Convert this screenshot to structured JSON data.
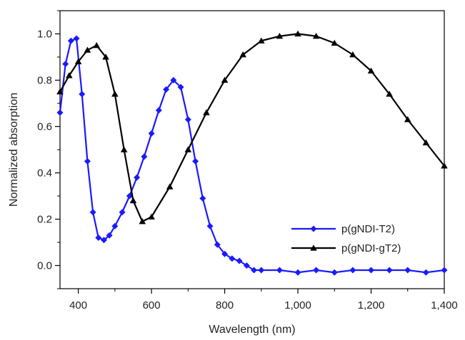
{
  "chart_data": {
    "type": "line",
    "title": "",
    "xlabel": "Wavelength (nm)",
    "ylabel": "Normalized absorption",
    "xlim": [
      350,
      1400
    ],
    "ylim": [
      -0.1,
      1.1
    ],
    "x_ticks": [
      400,
      600,
      800,
      1000,
      1200,
      1400
    ],
    "x_tick_labels": [
      "400",
      "600",
      "800",
      "1,000",
      "1,200",
      "1,400"
    ],
    "y_ticks": [
      0.0,
      0.2,
      0.4,
      0.6,
      0.8,
      1.0
    ],
    "y_tick_labels": [
      "0.0",
      "0.2",
      "0.4",
      "0.6",
      "0.8",
      "1.0"
    ],
    "grid": false,
    "legend_position": "bottom-right",
    "series": [
      {
        "name": "p(gNDI-T2)",
        "color": "#1a1aff",
        "marker": "diamond",
        "x": [
          350,
          365,
          380,
          395,
          410,
          425,
          440,
          455,
          470,
          485,
          500,
          520,
          540,
          560,
          580,
          600,
          620,
          640,
          660,
          680,
          700,
          720,
          740,
          760,
          780,
          800,
          820,
          840,
          860,
          880,
          900,
          950,
          1000,
          1050,
          1100,
          1150,
          1200,
          1250,
          1300,
          1350,
          1400
        ],
        "y": [
          0.66,
          0.87,
          0.97,
          0.98,
          0.74,
          0.45,
          0.23,
          0.12,
          0.11,
          0.13,
          0.17,
          0.23,
          0.3,
          0.38,
          0.47,
          0.57,
          0.67,
          0.76,
          0.8,
          0.77,
          0.63,
          0.45,
          0.29,
          0.17,
          0.09,
          0.05,
          0.03,
          0.02,
          0.0,
          -0.02,
          -0.02,
          -0.02,
          -0.03,
          -0.02,
          -0.03,
          -0.02,
          -0.02,
          -0.02,
          -0.02,
          -0.03,
          -0.02
        ]
      },
      {
        "name": "p(gNDI-gT2)",
        "color": "#000000",
        "marker": "triangle",
        "x": [
          350,
          375,
          400,
          425,
          450,
          475,
          500,
          525,
          550,
          575,
          600,
          650,
          700,
          750,
          800,
          850,
          900,
          950,
          1000,
          1050,
          1100,
          1150,
          1200,
          1250,
          1300,
          1350,
          1400
        ],
        "y": [
          0.75,
          0.82,
          0.88,
          0.93,
          0.95,
          0.9,
          0.74,
          0.5,
          0.28,
          0.19,
          0.21,
          0.34,
          0.5,
          0.66,
          0.8,
          0.91,
          0.97,
          0.99,
          1.0,
          0.99,
          0.96,
          0.91,
          0.84,
          0.74,
          0.63,
          0.53,
          0.43
        ]
      }
    ]
  }
}
